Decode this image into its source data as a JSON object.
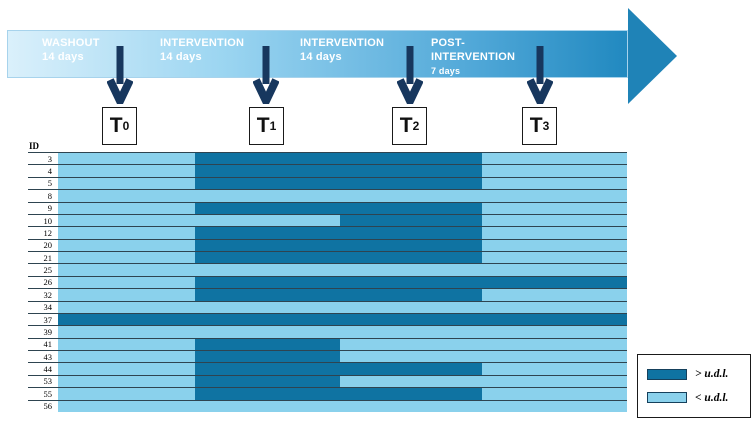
{
  "timeline": {
    "phases": [
      {
        "name": "WASHOUT",
        "duration": "14 days"
      },
      {
        "name": "INTERVENTION",
        "duration": "14 days"
      },
      {
        "name": "INTERVENTION",
        "duration": "14 days"
      },
      {
        "name": "POST-INTERVENTION",
        "duration": "7 days"
      }
    ],
    "timepoints": [
      {
        "label": "T",
        "sub": "0"
      },
      {
        "label": "T",
        "sub": "1"
      },
      {
        "label": "T",
        "sub": "2"
      },
      {
        "label": "T",
        "sub": "3"
      }
    ]
  },
  "table": {
    "id_header": "ID"
  },
  "legend": {
    "items": [
      {
        "label": "> u.d.l.",
        "color_key": "above_udl"
      },
      {
        "label": "< u.d.l.",
        "color_key": "below_udl"
      }
    ]
  },
  "colors": {
    "above_udl": "#0f73a2",
    "below_udl": "#8ad1ec",
    "timeline_arrow": "#1f83b7",
    "gradient_start": "#daf0fb",
    "gradient_end": "#2189c0",
    "marker_navy": "#17375e",
    "row_line": "#2e4450"
  },
  "chart_data": {
    "type": "heatmap",
    "title": "",
    "columns": [
      "WASHOUT 14 days",
      "INTERVENTION 14 days",
      "INTERVENTION 14 days",
      "POST-INTERVENTION 7 days"
    ],
    "rows": [
      "3",
      "4",
      "5",
      "8",
      "9",
      "10",
      "12",
      "20",
      "21",
      "25",
      "26",
      "32",
      "34",
      "37",
      "39",
      "41",
      "43",
      "44",
      "53",
      "55",
      "56"
    ],
    "values": [
      [
        0,
        1,
        1,
        0
      ],
      [
        0,
        1,
        1,
        0
      ],
      [
        0,
        1,
        1,
        0
      ],
      [
        0,
        0,
        0,
        0
      ],
      [
        0,
        1,
        1,
        0
      ],
      [
        0,
        0,
        1,
        0
      ],
      [
        0,
        1,
        1,
        0
      ],
      [
        0,
        1,
        1,
        0
      ],
      [
        0,
        1,
        1,
        0
      ],
      [
        0,
        0,
        0,
        0
      ],
      [
        0,
        1,
        1,
        1
      ],
      [
        0,
        1,
        1,
        0
      ],
      [
        0,
        0,
        0,
        0
      ],
      [
        1,
        1,
        1,
        1
      ],
      [
        0,
        0,
        0,
        0
      ],
      [
        0,
        1,
        0,
        0
      ],
      [
        0,
        1,
        0,
        0
      ],
      [
        0,
        1,
        1,
        0
      ],
      [
        0,
        1,
        0,
        0
      ],
      [
        0,
        1,
        1,
        0
      ],
      [
        0,
        0,
        0,
        0
      ]
    ],
    "value_legend": {
      "1": "> u.d.l.",
      "0": "< u.d.l."
    },
    "legend_position": "bottom-right"
  }
}
